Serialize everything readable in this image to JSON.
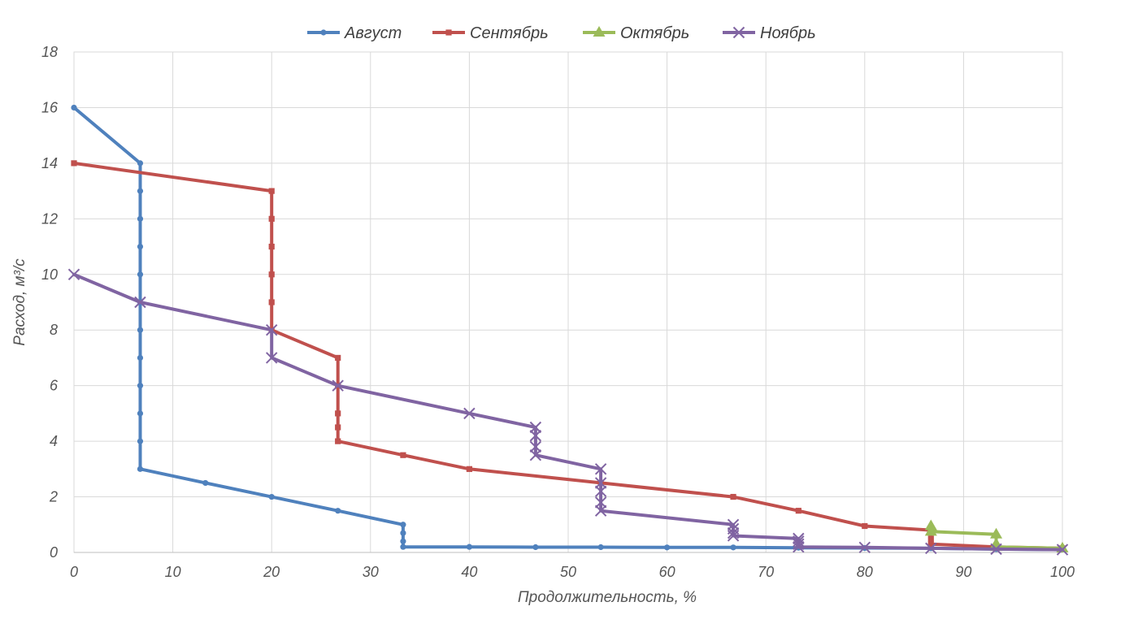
{
  "chart_data": {
    "type": "line",
    "title": "",
    "xlabel": "Продолжительность, %",
    "ylabel": "Расход, м³/с",
    "xlim": [
      0,
      100
    ],
    "ylim": [
      0,
      18
    ],
    "xticks": [
      0,
      10,
      20,
      30,
      40,
      50,
      60,
      70,
      80,
      90,
      100
    ],
    "yticks": [
      0,
      2,
      4,
      6,
      8,
      10,
      12,
      14,
      16,
      18
    ],
    "grid": true,
    "legend_position": "top",
    "series": [
      {
        "name": "Август",
        "color": "#4f81bd",
        "marker": "circle",
        "points": [
          [
            0,
            16
          ],
          [
            6.7,
            14
          ],
          [
            6.7,
            13
          ],
          [
            6.7,
            12
          ],
          [
            6.7,
            11
          ],
          [
            6.7,
            10
          ],
          [
            6.7,
            9
          ],
          [
            6.7,
            8
          ],
          [
            6.7,
            7
          ],
          [
            6.7,
            6
          ],
          [
            6.7,
            5
          ],
          [
            6.7,
            4
          ],
          [
            6.7,
            3
          ],
          [
            13.3,
            2.5
          ],
          [
            20,
            2
          ],
          [
            26.7,
            1.5
          ],
          [
            33.3,
            1
          ],
          [
            33.3,
            0.7
          ],
          [
            33.3,
            0.4
          ],
          [
            33.3,
            0.2
          ],
          [
            40,
            0.2
          ],
          [
            46.7,
            0.19
          ],
          [
            53.3,
            0.19
          ],
          [
            60,
            0.18
          ],
          [
            66.7,
            0.18
          ],
          [
            73.3,
            0.17
          ],
          [
            80,
            0.16
          ],
          [
            86.7,
            0.15
          ],
          [
            93.3,
            0.12
          ],
          [
            100,
            0.1
          ]
        ]
      },
      {
        "name": "Сентябрь",
        "color": "#c0504d",
        "marker": "square",
        "points": [
          [
            0,
            14
          ],
          [
            20,
            13
          ],
          [
            20,
            12
          ],
          [
            20,
            11
          ],
          [
            20,
            10
          ],
          [
            20,
            9
          ],
          [
            20,
            8
          ],
          [
            26.7,
            7
          ],
          [
            26.7,
            6
          ],
          [
            26.7,
            5
          ],
          [
            26.7,
            4.5
          ],
          [
            26.7,
            4
          ],
          [
            33.3,
            3.5
          ],
          [
            40,
            3
          ],
          [
            53.3,
            2.5
          ],
          [
            66.7,
            2
          ],
          [
            73.3,
            1.5
          ],
          [
            80,
            0.95
          ],
          [
            86.7,
            0.8
          ],
          [
            86.7,
            0.5
          ],
          [
            86.7,
            0.3
          ],
          [
            93.3,
            0.2
          ],
          [
            100,
            0.15
          ]
        ]
      },
      {
        "name": "Октябрь",
        "color": "#9bbb59",
        "marker": "triangle",
        "points": [
          [
            86.7,
            0.95
          ],
          [
            86.7,
            0.75
          ],
          [
            93.3,
            0.65
          ],
          [
            93.3,
            0.3
          ],
          [
            93.3,
            0.2
          ],
          [
            100,
            0.15
          ]
        ]
      },
      {
        "name": "Ноябрь",
        "color": "#8064a2",
        "marker": "x",
        "points": [
          [
            0,
            10
          ],
          [
            6.7,
            9
          ],
          [
            20,
            8
          ],
          [
            20,
            7
          ],
          [
            26.7,
            6
          ],
          [
            40,
            5
          ],
          [
            46.7,
            4.5
          ],
          [
            46.7,
            4.2
          ],
          [
            46.7,
            3.8
          ],
          [
            46.7,
            3.5
          ],
          [
            53.3,
            3
          ],
          [
            53.3,
            2.5
          ],
          [
            53.3,
            2.2
          ],
          [
            53.3,
            1.8
          ],
          [
            53.3,
            1.5
          ],
          [
            66.7,
            1
          ],
          [
            66.7,
            0.85
          ],
          [
            66.7,
            0.7
          ],
          [
            66.7,
            0.6
          ],
          [
            73.3,
            0.5
          ],
          [
            73.3,
            0.4
          ],
          [
            73.3,
            0.3
          ],
          [
            73.3,
            0.2
          ],
          [
            80,
            0.18
          ],
          [
            86.7,
            0.15
          ],
          [
            93.3,
            0.12
          ],
          [
            100,
            0.1
          ]
        ]
      }
    ]
  }
}
